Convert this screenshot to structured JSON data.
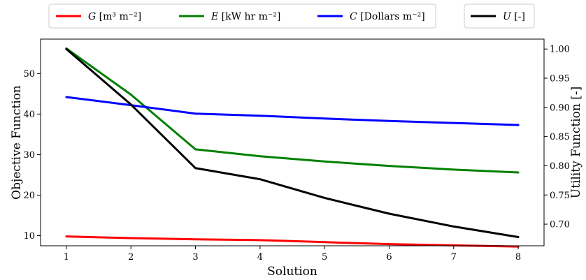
{
  "chart_data": {
    "type": "line",
    "x": [
      1,
      2,
      3,
      4,
      5,
      6,
      7,
      8
    ],
    "xlabel": "Solution",
    "ylabel_left": "Objective Function",
    "ylabel_right": "Utility Function [-]",
    "xlim": [
      0.6,
      8.4
    ],
    "ylim_left": [
      7.5,
      58.5
    ],
    "ylim_right": [
      0.663,
      1.017
    ],
    "xticks": [
      1,
      2,
      3,
      4,
      5,
      6,
      7,
      8
    ],
    "yticks_left": [
      10,
      20,
      30,
      40,
      50
    ],
    "yticks_right": [
      0.7,
      0.75,
      0.8,
      0.85,
      0.9,
      0.95,
      1.0
    ],
    "yticks_right_labels": [
      "0.70",
      "0.75",
      "0.80",
      "0.85",
      "0.90",
      "0.95",
      "1.00"
    ],
    "grid": false,
    "series": [
      {
        "var": "G",
        "unit": "[m³ m⁻²]",
        "axis": "left",
        "color": "#ff0000",
        "values": [
          9.8,
          9.4,
          9.1,
          8.9,
          8.4,
          7.9,
          7.6,
          7.3
        ]
      },
      {
        "var": "E",
        "unit": "[kW hr m⁻²]",
        "axis": "left",
        "color": "#008000",
        "values": [
          56.2,
          44.8,
          31.3,
          29.6,
          28.3,
          27.2,
          26.3,
          25.6
        ]
      },
      {
        "var": "C",
        "unit": "[Dollars m⁻²]",
        "axis": "left",
        "color": "#0000ff",
        "values": [
          44.2,
          42.2,
          40.1,
          39.6,
          38.9,
          38.3,
          37.8,
          37.3
        ]
      },
      {
        "var": "U",
        "unit": "[-]",
        "axis": "right",
        "color": "#000000",
        "values": [
          1.0,
          0.905,
          0.796,
          0.777,
          0.745,
          0.718,
          0.696,
          0.678
        ]
      }
    ]
  }
}
